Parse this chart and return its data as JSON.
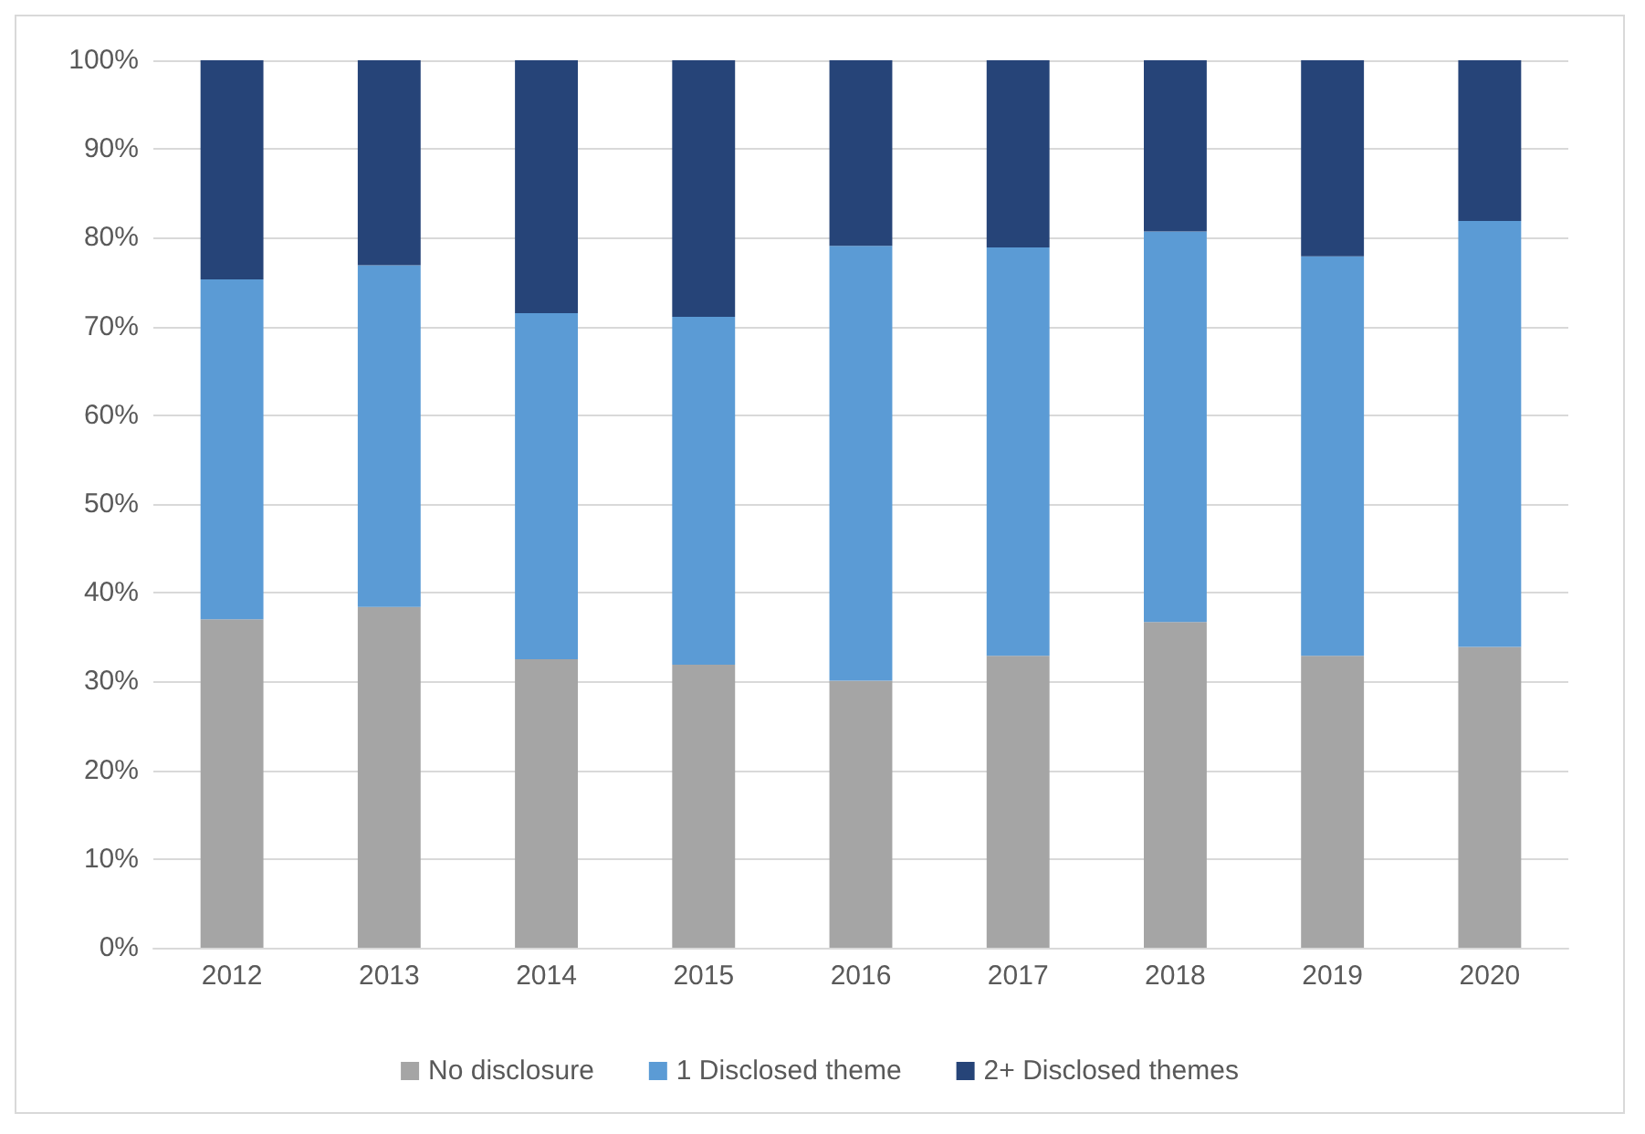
{
  "chart_data": {
    "type": "bar",
    "stacked": true,
    "categories": [
      "2012",
      "2013",
      "2014",
      "2015",
      "2016",
      "2017",
      "2018",
      "2019",
      "2020"
    ],
    "series": [
      {
        "name": "No disclosure",
        "color": "#a5a5a5",
        "values": [
          37,
          38.4,
          32.5,
          31.9,
          30.1,
          32.9,
          36.7,
          32.9,
          33.9
        ]
      },
      {
        "name": "1 Disclosed theme",
        "color": "#5b9bd5",
        "values": [
          38.3,
          38.5,
          39,
          39.2,
          49,
          46,
          44,
          45,
          48
        ]
      },
      {
        "name": "2+ Disclosed themes",
        "color": "#264478",
        "values": [
          24.7,
          23.1,
          28.5,
          28.9,
          20.9,
          21.1,
          19.3,
          22.1,
          18.1
        ]
      }
    ],
    "ylim": [
      0,
      100
    ],
    "yticks": [
      {
        "value": 0,
        "label": "0%"
      },
      {
        "value": 10,
        "label": "10%"
      },
      {
        "value": 20,
        "label": "20%"
      },
      {
        "value": 30,
        "label": "30%"
      },
      {
        "value": 40,
        "label": "40%"
      },
      {
        "value": 50,
        "label": "50%"
      },
      {
        "value": 60,
        "label": "60%"
      },
      {
        "value": 70,
        "label": "70%"
      },
      {
        "value": 80,
        "label": "80%"
      },
      {
        "value": 90,
        "label": "90%"
      },
      {
        "value": 100,
        "label": "100%"
      }
    ],
    "grid": "y",
    "legend": "bottom"
  }
}
